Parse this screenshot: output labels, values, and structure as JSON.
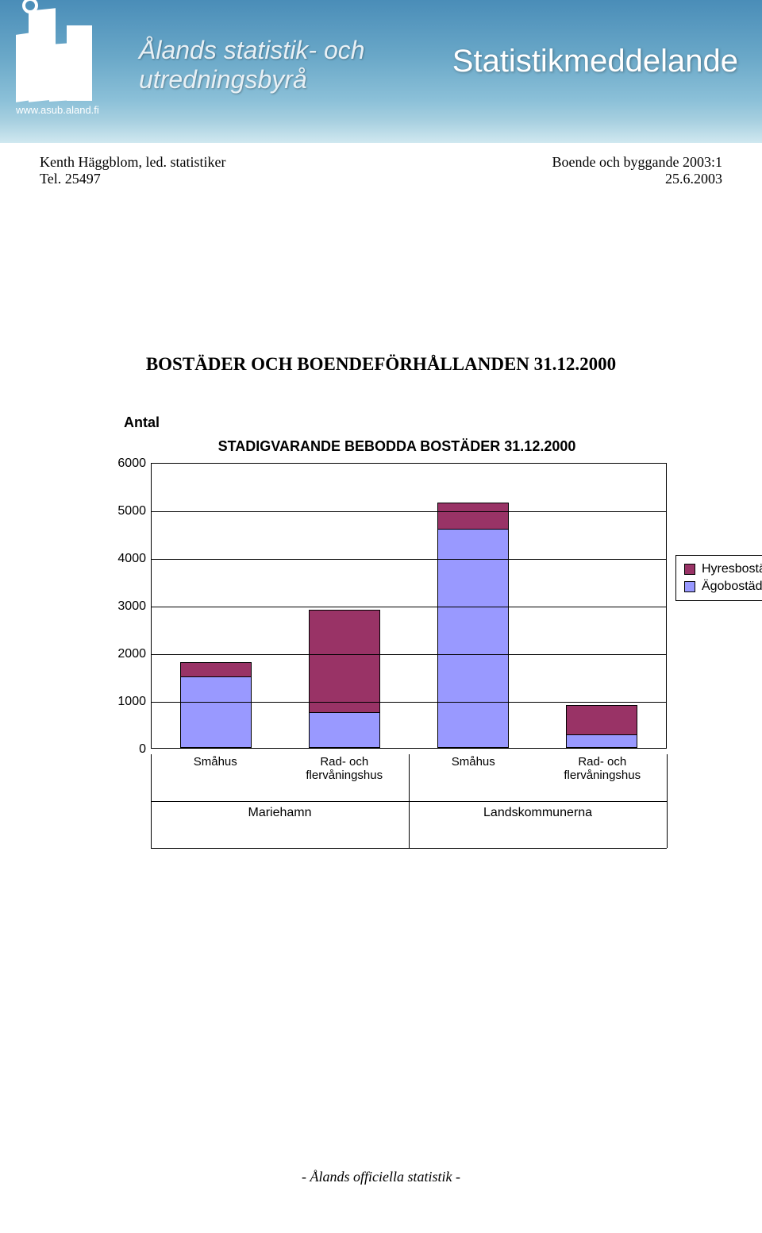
{
  "banner": {
    "logo_url": "www.asub.aland.fi",
    "org_name_line1": "Ålands statistik- och",
    "org_name_line2": "utredningsbyrå",
    "right_title": "Statistikmeddelande"
  },
  "meta": {
    "author": "Kenth Häggblom, led. statistiker",
    "phone": "Tel. 25497",
    "subject": "Boende och byggande 2003:1",
    "date": "25.6.2003"
  },
  "heading": "BOSTÄDER OCH BOENDEFÖRHÅLLANDEN 31.12.2000",
  "chart": {
    "type": "stacked-bar",
    "y_axis_label": "Antal",
    "title": "STADIGVARANDE BEBODDA BOSTÄDER 31.12.2000",
    "y_max": 6000,
    "y_ticks": [
      0,
      1000,
      2000,
      3000,
      4000,
      5000,
      6000
    ],
    "categories": [
      "Småhus",
      "Rad- och flervåningshus",
      "Småhus",
      "Rad- och flervåningshus"
    ],
    "groups": [
      "Mariehamn",
      "Landskommunerna"
    ],
    "group_spans": [
      2,
      2
    ],
    "series": [
      {
        "name": "Ägobostäder",
        "color": "#9999ff",
        "values": [
          1500,
          750,
          4600,
          280
        ]
      },
      {
        "name": "Hyresbostäder",
        "color": "#993366",
        "values": [
          300,
          2150,
          550,
          620
        ]
      }
    ],
    "legend_order": [
      "Hyresbostäder",
      "Ägobostäder"
    ],
    "background_color": "#ffffff",
    "grid_color": "#000000",
    "bar_border_color": "#000000",
    "font_family": "Arial",
    "title_fontsize": 18,
    "tick_fontsize": 16
  },
  "footer": "- Ålands officiella statistik -"
}
